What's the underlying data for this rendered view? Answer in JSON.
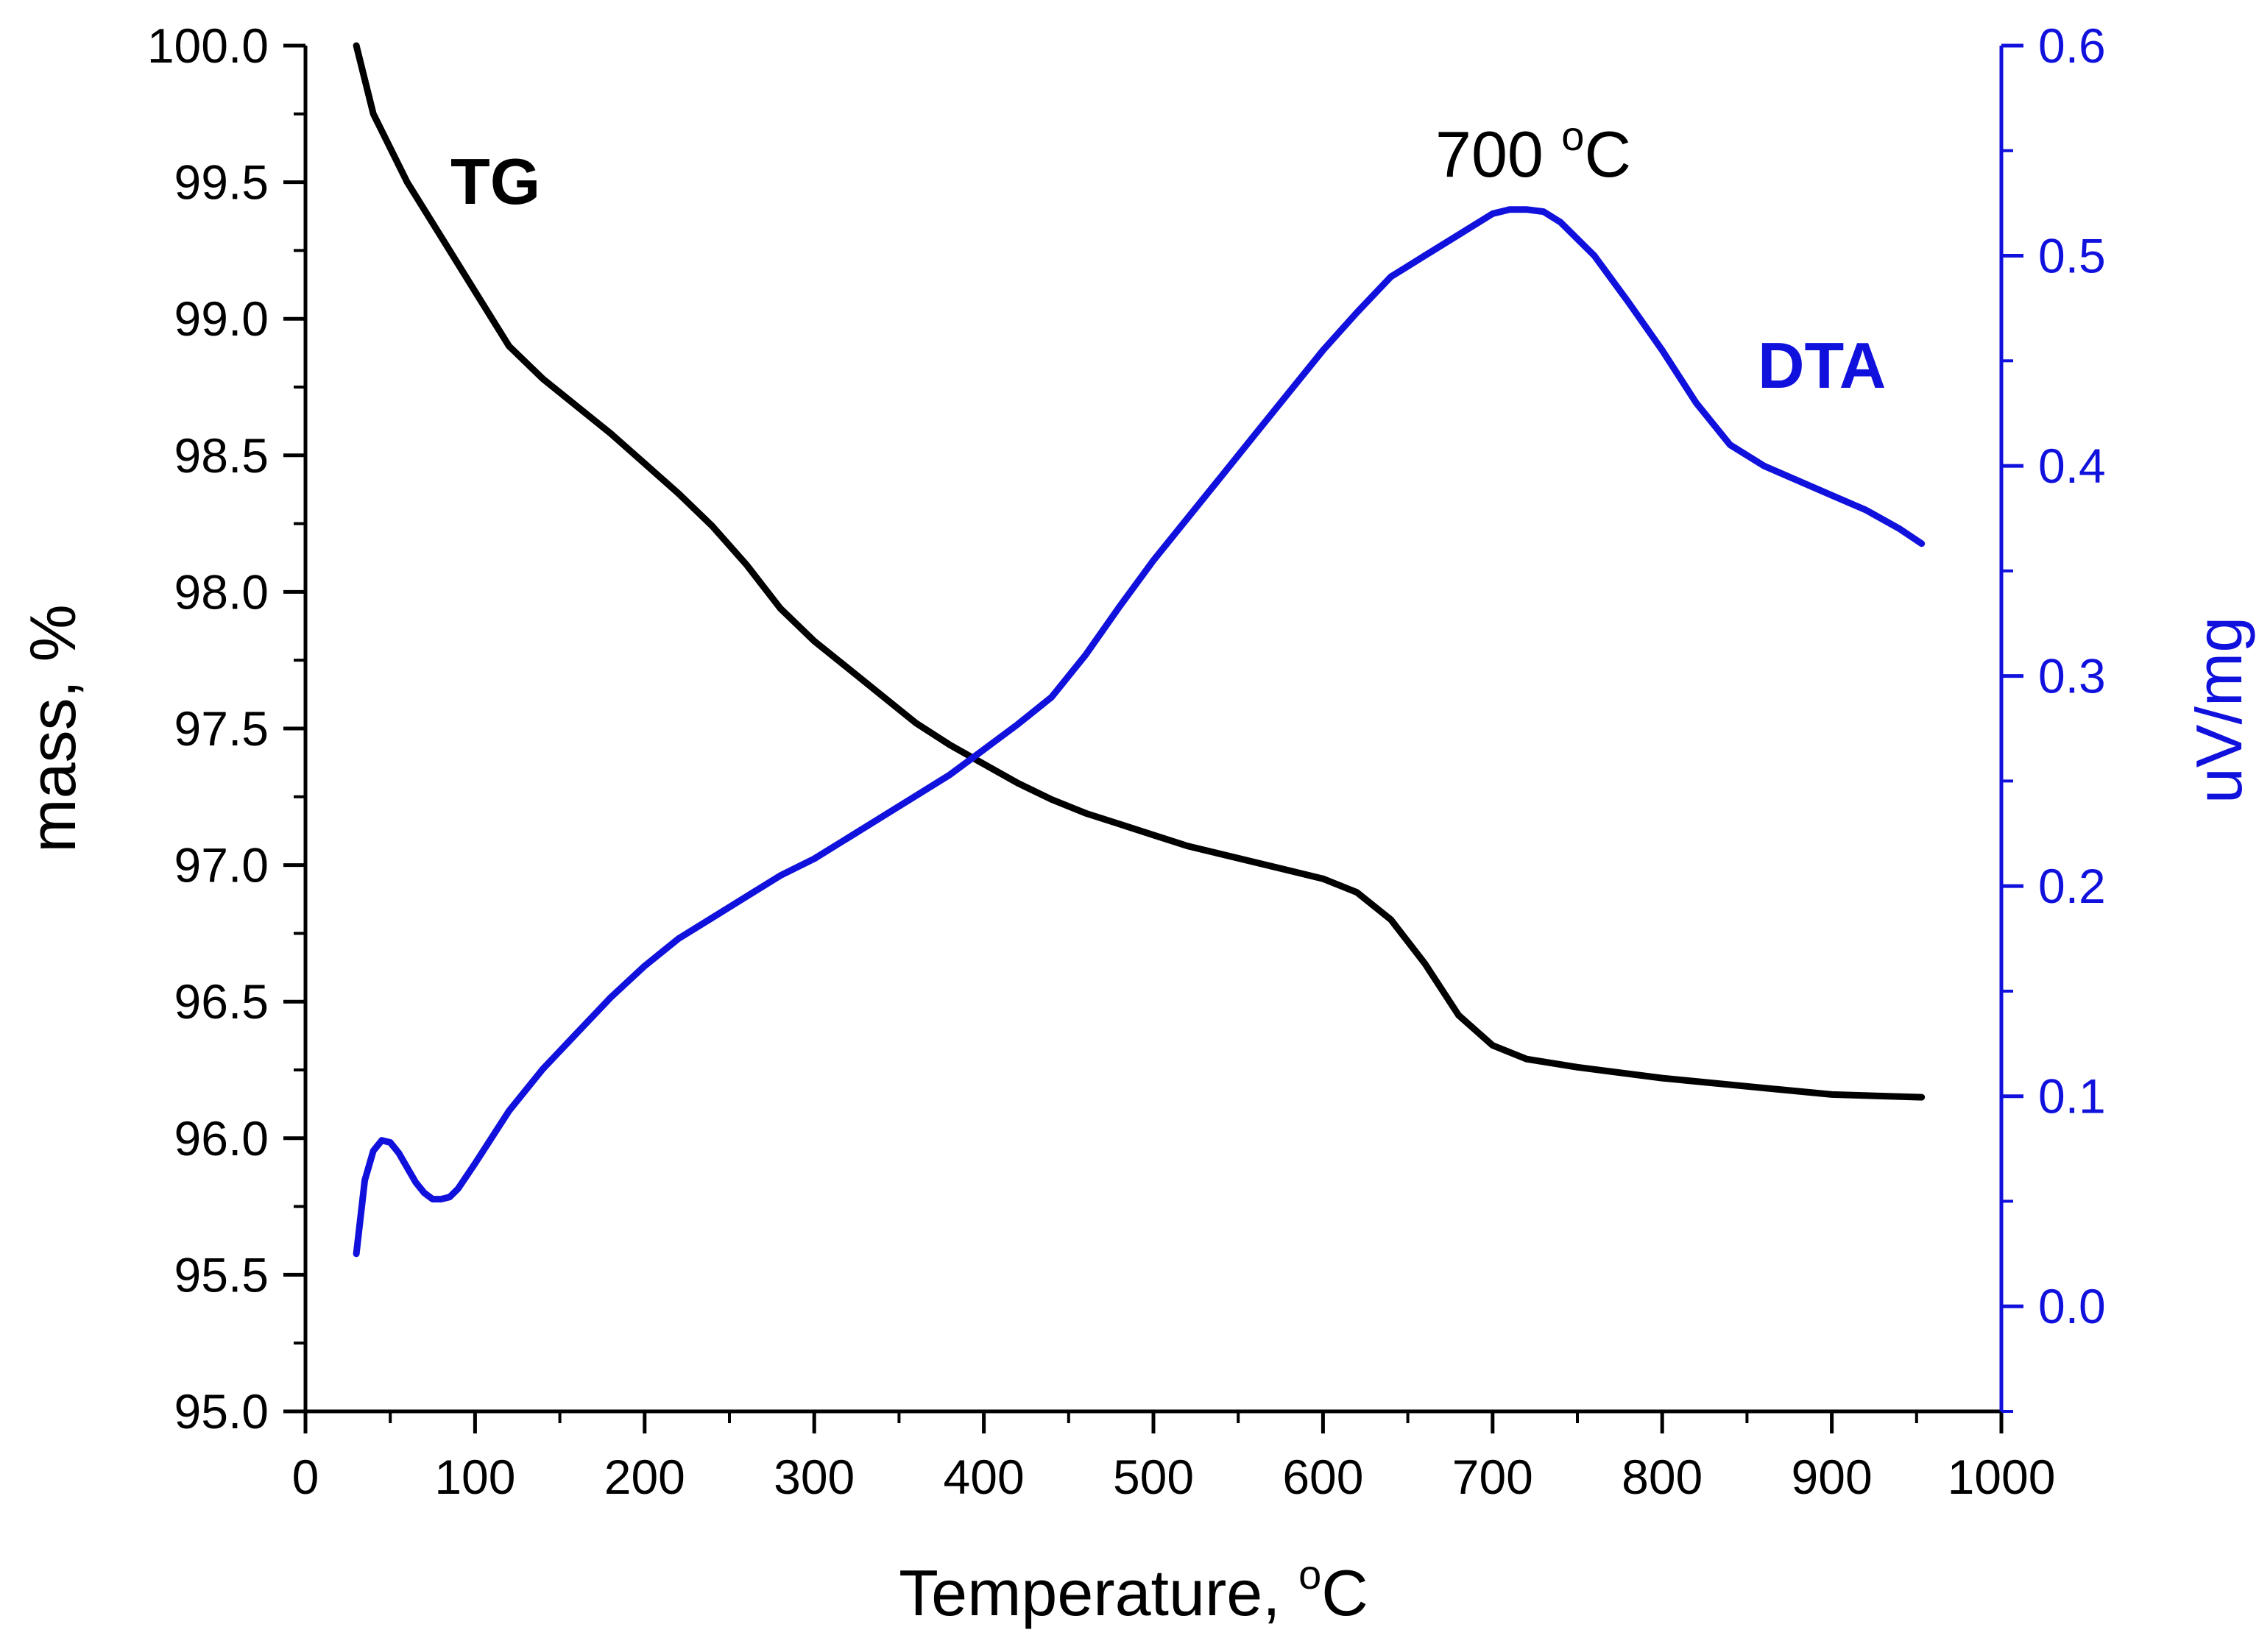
{
  "chart_data": {
    "type": "line",
    "xlabel": "Temperature, ",
    "xlabel_unit": "C",
    "ylabel": "mass, %",
    "y2label": "uV/mg",
    "xlim": [
      0,
      1000
    ],
    "ylim": [
      95.0,
      100.0
    ],
    "y2lim": [
      -0.05,
      0.6
    ],
    "xticks": [
      0,
      100,
      200,
      300,
      400,
      500,
      600,
      700,
      800,
      900,
      1000
    ],
    "yticks": [
      "95.0",
      "95.5",
      "96.0",
      "96.5",
      "97.0",
      "97.5",
      "98.0",
      "98.5",
      "99.0",
      "99.5",
      "100.0"
    ],
    "y2ticks": [
      "0.0",
      "0.1",
      "0.2",
      "0.3",
      "0.4",
      "0.5",
      "0.6"
    ],
    "series": [
      {
        "name": "TG",
        "axis": "left",
        "color": "#000000",
        "x": [
          30,
          40,
          60,
          80,
          100,
          120,
          140,
          160,
          180,
          200,
          220,
          240,
          260,
          280,
          300,
          320,
          340,
          360,
          380,
          400,
          420,
          440,
          460,
          480,
          500,
          520,
          540,
          560,
          580,
          600,
          620,
          640,
          660,
          680,
          700,
          720,
          750,
          800,
          850,
          900,
          953
        ],
        "y": [
          100.0,
          99.75,
          99.5,
          99.3,
          99.1,
          98.9,
          98.78,
          98.68,
          98.58,
          98.47,
          98.36,
          98.24,
          98.1,
          97.94,
          97.82,
          97.72,
          97.62,
          97.52,
          97.44,
          97.37,
          97.3,
          97.24,
          97.19,
          97.15,
          97.11,
          97.07,
          97.04,
          97.01,
          96.98,
          96.95,
          96.9,
          96.8,
          96.64,
          96.45,
          96.34,
          96.29,
          96.26,
          96.22,
          96.19,
          96.16,
          96.15
        ]
      },
      {
        "name": "DTA",
        "axis": "right",
        "color": "#1111dd",
        "x": [
          30,
          35,
          40,
          45,
          50,
          55,
          60,
          65,
          70,
          75,
          80,
          85,
          90,
          100,
          120,
          140,
          160,
          180,
          200,
          220,
          240,
          260,
          280,
          300,
          320,
          340,
          360,
          380,
          400,
          420,
          440,
          460,
          480,
          500,
          520,
          540,
          560,
          580,
          600,
          620,
          640,
          660,
          680,
          700,
          710,
          720,
          730,
          740,
          760,
          780,
          800,
          820,
          840,
          860,
          880,
          900,
          920,
          940,
          953
        ],
        "y": [
          0.025,
          0.06,
          0.074,
          0.079,
          0.078,
          0.073,
          0.066,
          0.059,
          0.054,
          0.051,
          0.051,
          0.052,
          0.056,
          0.068,
          0.093,
          0.113,
          0.13,
          0.147,
          0.162,
          0.175,
          0.185,
          0.195,
          0.205,
          0.213,
          0.223,
          0.233,
          0.243,
          0.253,
          0.265,
          0.277,
          0.29,
          0.31,
          0.333,
          0.355,
          0.375,
          0.395,
          0.415,
          0.435,
          0.455,
          0.473,
          0.49,
          0.5,
          0.51,
          0.52,
          0.522,
          0.522,
          0.521,
          0.516,
          0.5,
          0.478,
          0.455,
          0.43,
          0.41,
          0.4,
          0.393,
          0.386,
          0.379,
          0.37,
          0.363
        ]
      }
    ],
    "annotations": {
      "tg_label": "TG",
      "dta_label": "DTA",
      "peak_label": "700 ",
      "peak_unit": "C",
      "degree_symbol": "o"
    }
  }
}
